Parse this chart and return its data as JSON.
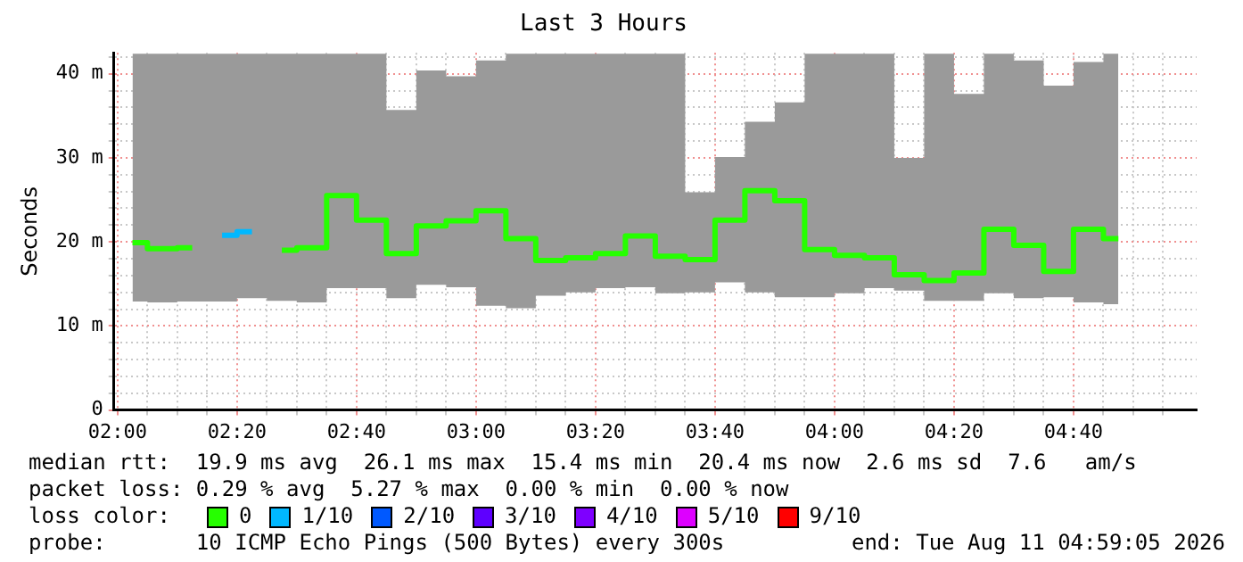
{
  "chart_data": {
    "type": "step",
    "title": "Last 3 Hours",
    "ylabel": "Seconds",
    "x": [
      2.0417,
      2.125,
      2.2083,
      2.2917,
      2.375,
      2.4583,
      2.5417,
      2.625,
      2.7083,
      2.7917,
      2.875,
      2.9583,
      3.0417,
      3.125,
      3.2083,
      3.2917,
      3.375,
      3.4583,
      3.5417,
      3.625,
      3.7083,
      3.7917,
      3.875,
      3.9583,
      4.0417,
      4.125,
      4.2083,
      4.2917,
      4.375,
      4.4583,
      4.5417,
      4.625,
      4.7083,
      4.7917
    ],
    "series": [
      {
        "name": "0",
        "color": "#26ff00",
        "values": [
          19.9,
          19.2,
          19.3,
          null,
          null,
          19.0,
          19.3,
          25.5,
          22.6,
          18.6,
          21.9,
          22.5,
          23.7,
          20.4,
          17.8,
          18.1,
          18.6,
          20.7,
          18.3,
          17.9,
          22.6,
          26.1,
          24.9,
          19.1,
          18.4,
          18.1,
          16.1,
          15.4,
          16.3,
          21.5,
          19.6,
          16.5,
          21.5,
          20.4
        ],
        "lower": [
          12.9,
          12.8,
          12.9,
          12.9,
          13.3,
          13.0,
          12.8,
          14.5,
          14.5,
          13.3,
          14.9,
          14.6,
          12.4,
          12.1,
          13.6,
          14.0,
          14.5,
          14.6,
          13.9,
          14.0,
          15.2,
          14.0,
          13.4,
          13.4,
          13.9,
          14.5,
          14.2,
          13.0,
          13.0,
          13.9,
          13.3,
          13.4,
          12.8,
          12.6
        ],
        "upper": [
          42.4,
          42.4,
          42.4,
          42.4,
          42.4,
          42.4,
          42.4,
          42.4,
          42.4,
          35.7,
          40.4,
          39.7,
          41.6,
          42.4,
          42.4,
          42.4,
          42.4,
          42.4,
          42.4,
          25.9,
          30.1,
          34.3,
          36.6,
          42.4,
          42.4,
          42.4,
          30.0,
          42.4,
          37.6,
          42.4,
          41.6,
          38.6,
          41.4,
          42.4
        ]
      },
      {
        "name": "1/10",
        "color": "#00b8ff",
        "values": [
          null,
          null,
          null,
          20.8,
          21.2,
          null,
          null,
          null,
          null,
          null,
          null,
          null,
          null,
          null,
          null,
          null,
          null,
          null,
          null,
          null,
          null,
          null,
          null,
          null,
          null,
          null,
          null,
          null,
          null,
          null,
          null,
          null,
          null,
          null
        ]
      },
      {
        "name": "2/10",
        "color": "#0059ff",
        "values": [
          null,
          null,
          null,
          null,
          null,
          null,
          null,
          null,
          null,
          null,
          null,
          null,
          null,
          null,
          null,
          null,
          null,
          null,
          null,
          null,
          null,
          null,
          null,
          null,
          null,
          null,
          null,
          null,
          null,
          null,
          null,
          null,
          null,
          null
        ]
      },
      {
        "name": "3/10",
        "color": "#5e00ff",
        "values": [
          null,
          null,
          null,
          null,
          null,
          null,
          null,
          null,
          null,
          null,
          null,
          null,
          null,
          null,
          null,
          null,
          null,
          null,
          null,
          null,
          null,
          null,
          null,
          null,
          null,
          null,
          null,
          null,
          null,
          null,
          null,
          null,
          null,
          null
        ]
      },
      {
        "name": "4/10",
        "color": "#7e00ff",
        "values": [
          null,
          null,
          null,
          null,
          null,
          null,
          null,
          null,
          null,
          null,
          null,
          null,
          null,
          null,
          null,
          null,
          null,
          null,
          null,
          null,
          null,
          null,
          null,
          null,
          null,
          null,
          null,
          null,
          null,
          null,
          null,
          null,
          null,
          null
        ]
      },
      {
        "name": "5/10",
        "color": "#dd00ff",
        "values": [
          null,
          null,
          null,
          null,
          null,
          null,
          null,
          null,
          null,
          null,
          null,
          null,
          null,
          null,
          null,
          null,
          null,
          null,
          null,
          null,
          null,
          null,
          null,
          null,
          null,
          null,
          null,
          null,
          null,
          null,
          null,
          null,
          null,
          null
        ]
      },
      {
        "name": "9/10",
        "color": "#ff0000",
        "values": [
          null,
          null,
          null,
          null,
          null,
          null,
          null,
          null,
          null,
          null,
          null,
          null,
          null,
          null,
          null,
          null,
          null,
          null,
          null,
          null,
          null,
          null,
          null,
          null,
          null,
          null,
          null,
          null,
          null,
          null,
          null,
          null,
          null,
          null
        ]
      }
    ],
    "xlim": [
      1.99,
      5.01
    ],
    "xticks": [
      {
        "value": 2,
        "label": "02:00"
      },
      {
        "value": 2.0833,
        "label": null
      },
      {
        "value": 2.1667,
        "label": null
      },
      {
        "value": 2.25,
        "label": null
      },
      {
        "value": 2.3333,
        "label": "02:20"
      },
      {
        "value": 2.4167,
        "label": null
      },
      {
        "value": 2.5,
        "label": null
      },
      {
        "value": 2.5833,
        "label": null
      },
      {
        "value": 2.6667,
        "label": "02:40"
      },
      {
        "value": 2.75,
        "label": null
      },
      {
        "value": 2.8333,
        "label": null
      },
      {
        "value": 2.9167,
        "label": null
      },
      {
        "value": 3,
        "label": "03:00"
      },
      {
        "value": 3.0833,
        "label": null
      },
      {
        "value": 3.1667,
        "label": null
      },
      {
        "value": 3.25,
        "label": null
      },
      {
        "value": 3.3333,
        "label": "03:20"
      },
      {
        "value": 3.4167,
        "label": null
      },
      {
        "value": 3.5,
        "label": null
      },
      {
        "value": 3.5833,
        "label": null
      },
      {
        "value": 3.6667,
        "label": "03:40"
      },
      {
        "value": 3.75,
        "label": null
      },
      {
        "value": 3.8333,
        "label": null
      },
      {
        "value": 3.9167,
        "label": null
      },
      {
        "value": 4,
        "label": "04:00"
      },
      {
        "value": 4.0833,
        "label": null
      },
      {
        "value": 4.1667,
        "label": null
      },
      {
        "value": 4.25,
        "label": null
      },
      {
        "value": 4.3333,
        "label": "04:20"
      },
      {
        "value": 4.4167,
        "label": null
      },
      {
        "value": 4.5,
        "label": null
      },
      {
        "value": 4.5833,
        "label": null
      },
      {
        "value": 4.6667,
        "label": "04:40"
      },
      {
        "value": 4.75,
        "label": null
      },
      {
        "value": 4.8333,
        "label": null
      },
      {
        "value": 4.9167,
        "label": null
      }
    ],
    "ylim": [
      0,
      42.5
    ],
    "yticks": [
      0,
      {
        "value": 2,
        "label": null
      },
      {
        "value": 4,
        "label": null
      },
      {
        "value": 6,
        "label": null
      },
      {
        "value": 8,
        "label": null
      },
      {
        "value": 10,
        "label": "10 m"
      },
      {
        "value": 12,
        "label": null
      },
      {
        "value": 14,
        "label": null
      },
      {
        "value": 16,
        "label": null
      },
      {
        "value": 18,
        "label": null
      },
      {
        "value": 20,
        "label": "20 m"
      },
      {
        "value": 22,
        "label": null
      },
      {
        "value": 24,
        "label": null
      },
      {
        "value": 26,
        "label": null
      },
      {
        "value": 28,
        "label": null
      },
      {
        "value": 30,
        "label": "30 m"
      },
      {
        "value": 32,
        "label": null
      },
      {
        "value": 34,
        "label": null
      },
      {
        "value": 36,
        "label": null
      },
      {
        "value": 38,
        "label": null
      },
      {
        "value": 40,
        "label": "40 m"
      },
      {
        "value": 42,
        "label": null
      }
    ],
    "grid": true,
    "legend": "bottom",
    "legend_title": "loss color:",
    "annotations": [
      "median rtt:  19.9 ms avg  26.1 ms max  15.4 ms min  20.4 ms now  2.6 ms sd  7.6   am/s",
      "packet loss: 0.29 % avg  5.27 % max  0.00 % min  0.00 % now",
      "probe:       10 ICMP Echo Pings (500 Bytes) every 300s",
      "end: Tue Aug 11 04:59:05 2026"
    ]
  }
}
